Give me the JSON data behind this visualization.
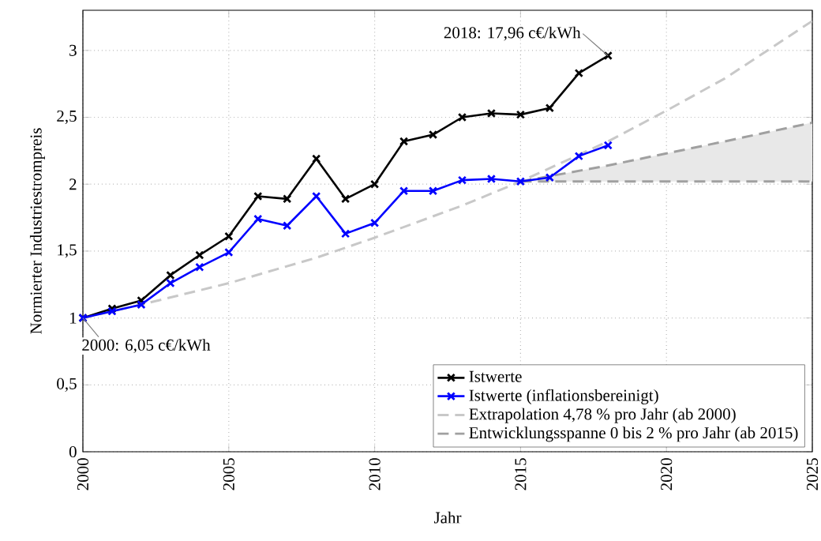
{
  "chart_data": {
    "type": "line",
    "xlabel": "Jahr",
    "ylabel": "Normierter Industriestrompreis",
    "xlim": [
      2000,
      2025
    ],
    "ylim": [
      0,
      3.3
    ],
    "xticks": [
      2000,
      2005,
      2010,
      2015,
      2020,
      2025
    ],
    "yticks": [
      0,
      {
        "value": 0.5,
        "label": "0,5"
      },
      1,
      {
        "value": 1.5,
        "label": "1,5"
      },
      2,
      {
        "value": 2.5,
        "label": "2,5"
      },
      3
    ],
    "grid": true,
    "legend": "bottom right",
    "series": [
      {
        "name": "Istwerte",
        "color": "#000000",
        "marker": "cross",
        "line_style": "solid",
        "x": [
          2000,
          2001,
          2002,
          2003,
          2004,
          2005,
          2006,
          2007,
          2008,
          2009,
          2010,
          2011,
          2012,
          2013,
          2014,
          2015,
          2016,
          2017,
          2018
        ],
        "values": [
          1.0,
          1.07,
          1.13,
          1.32,
          1.47,
          1.61,
          1.91,
          1.89,
          2.19,
          1.89,
          2.0,
          2.32,
          2.37,
          2.5,
          2.53,
          2.52,
          2.57,
          2.83,
          2.96
        ]
      },
      {
        "name": "Istwerte (inflationsbereinigt)",
        "color": "#0000ff",
        "marker": "cross",
        "line_style": "solid",
        "x": [
          2000,
          2001,
          2002,
          2003,
          2004,
          2005,
          2006,
          2007,
          2008,
          2009,
          2010,
          2011,
          2012,
          2013,
          2014,
          2015,
          2016,
          2017,
          2018
        ],
        "values": [
          1.0,
          1.05,
          1.1,
          1.26,
          1.38,
          1.49,
          1.74,
          1.69,
          1.91,
          1.63,
          1.71,
          1.95,
          1.95,
          2.03,
          2.04,
          2.02,
          2.05,
          2.21,
          2.29
        ]
      },
      {
        "name": "Extrapolation 4,78 % pro Jahr (ab 2000)",
        "color": "#c8c8c8",
        "marker": "none",
        "line_style": "dashed",
        "x": [
          2000,
          2002,
          2005,
          2008,
          2010,
          2013,
          2015,
          2018,
          2020,
          2022,
          2025
        ],
        "values": [
          1.0,
          1.1,
          1.26,
          1.45,
          1.6,
          1.84,
          2.02,
          2.32,
          2.55,
          2.79,
          3.22
        ]
      },
      {
        "name": "Entwicklungsspanne 0 bis 2 % pro Jahr (ab 2015)",
        "color": "#a0a0a0",
        "marker": "none",
        "line_style": "dashed",
        "x": [
          2015,
          2018,
          2020,
          2022,
          2025
        ],
        "values": [
          2.02,
          2.14,
          2.23,
          2.32,
          2.46
        ],
        "lower": [
          2.02,
          2.02,
          2.02,
          2.02,
          2.02
        ],
        "upper": [
          2.02,
          2.14,
          2.23,
          2.32,
          2.46
        ]
      },
      {
        "color": "#a0a0a0",
        "marker": "none",
        "line_style": "dashed",
        "x": [
          2015,
          2018,
          2020,
          2022,
          2025
        ],
        "values": [
          2.02,
          2.02,
          2.02,
          2.02,
          2.02
        ]
      }
    ],
    "annotations": [
      {
        "text": "2000: 6,05 c€/kWh",
        "x": 2000,
        "y": 1.0
      },
      {
        "text": "2018: 17,96 c€/kWh",
        "x": 2018,
        "y": 2.96
      }
    ]
  }
}
